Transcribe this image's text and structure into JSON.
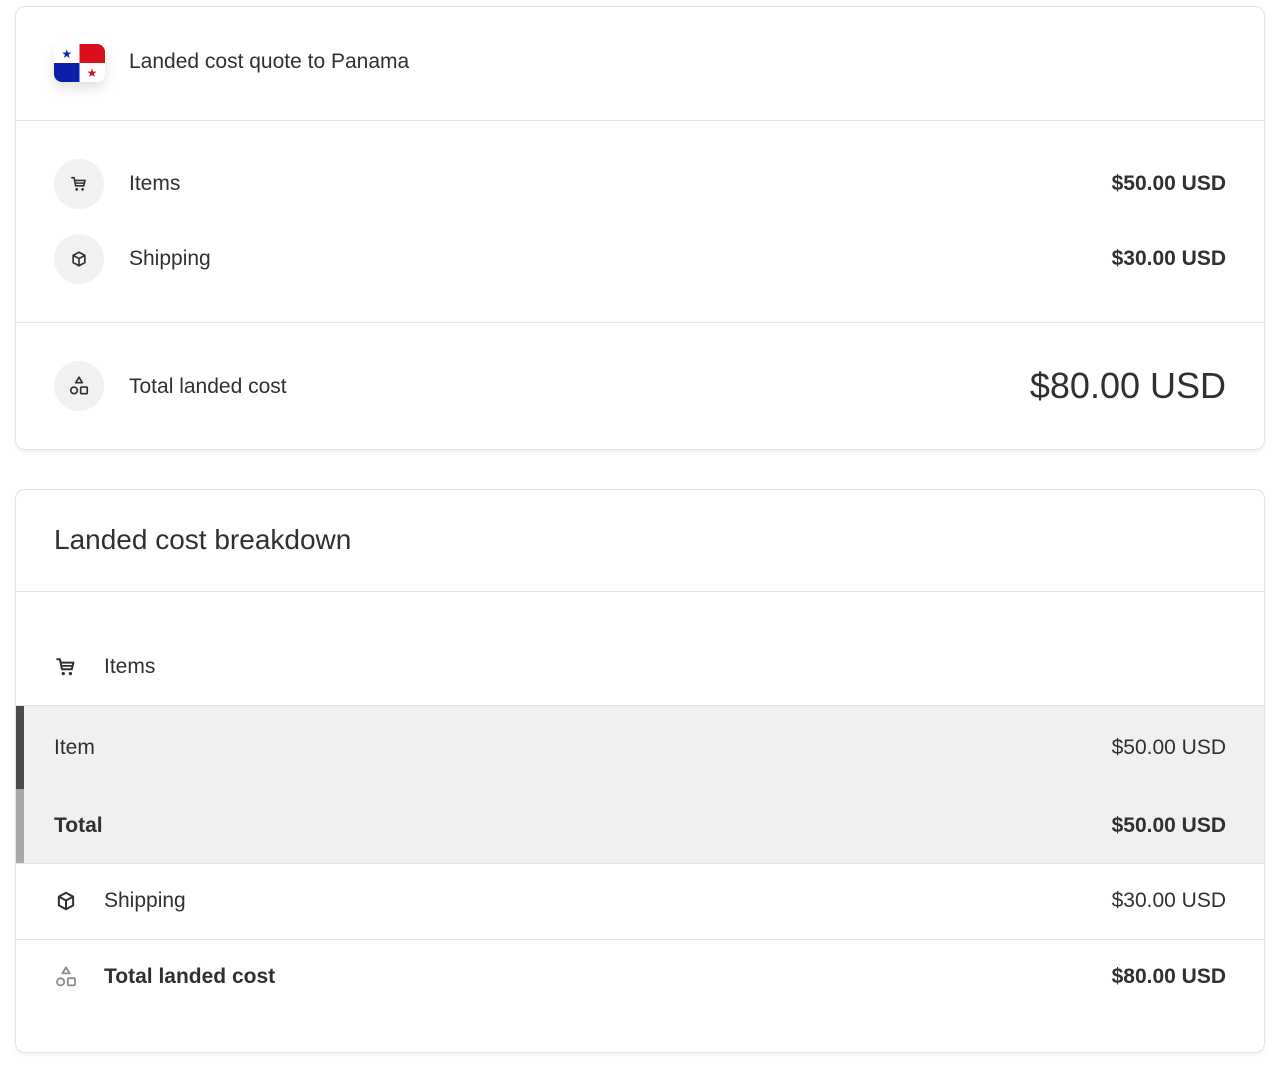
{
  "quote": {
    "title": "Landed cost quote to Panama",
    "flag": "panama-flag",
    "rows": [
      {
        "icon": "cart-icon",
        "label": "Items",
        "value": "$50.00 USD"
      },
      {
        "icon": "package-icon",
        "label": "Shipping",
        "value": "$30.00 USD"
      }
    ],
    "total": {
      "icon": "shapes-icon",
      "label": "Total landed cost",
      "value": "$80.00 USD"
    }
  },
  "breakdown": {
    "title": "Landed cost breakdown",
    "items_header": "Items",
    "item_row": {
      "label": "Item",
      "value": "$50.00 USD"
    },
    "items_total": {
      "label": "Total",
      "value": "$50.00 USD"
    },
    "shipping": {
      "label": "Shipping",
      "value": "$30.00 USD"
    },
    "total": {
      "label": "Total landed cost",
      "value": "$80.00 USD"
    }
  },
  "colors": {
    "flag_blue": "#0b1fa8",
    "flag_red": "#d8101e",
    "accent_bar": "#4a4a4a"
  }
}
